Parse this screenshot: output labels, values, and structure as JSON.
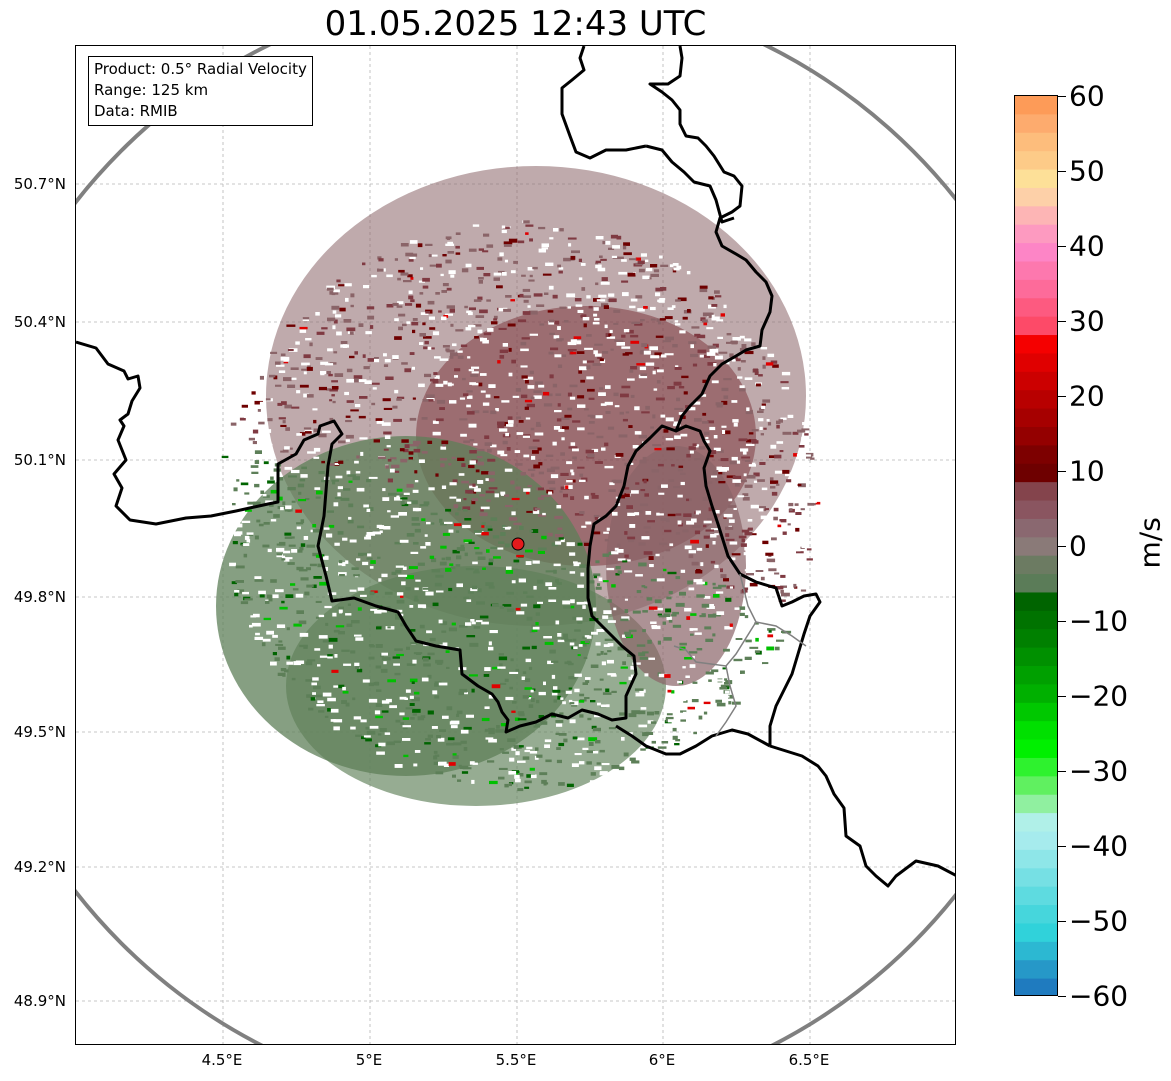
{
  "title": "01.05.2025 12:43 UTC",
  "info_box": {
    "line1": "Product: 0.5° Radial Velocity",
    "line2": "Range: 125 km",
    "line3": "Data: RMIB"
  },
  "lat_ticks": [
    "50.7°N",
    "50.4°N",
    "50.1°N",
    "49.8°N",
    "49.5°N",
    "49.2°N",
    "48.9°N"
  ],
  "lon_ticks": [
    "4.5°E",
    "5°E",
    "5.5°E",
    "6°E",
    "6.5°E"
  ],
  "colorbar": {
    "unit": "m/s",
    "ticks": [
      "60",
      "50",
      "40",
      "30",
      "20",
      "10",
      "0",
      "−10",
      "−20",
      "−30",
      "−40",
      "−50",
      "−60"
    ],
    "min": -60,
    "max": 60
  },
  "map": {
    "radar_site": {
      "lon": 5.505,
      "lat": 49.914
    },
    "range_km": 125,
    "lon_range": [
      4.0,
      7.0
    ],
    "lat_range": [
      48.8,
      51.0
    ]
  },
  "colors": {
    "range_ring": "#808080",
    "border": "#000000",
    "sub_border": "#808080",
    "radar_marker": "#e41a1c",
    "gridline": "#bdbdbd"
  }
}
